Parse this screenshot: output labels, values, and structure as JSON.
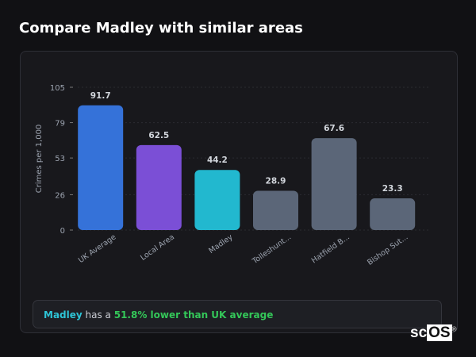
{
  "title": "Compare Madley with similar areas",
  "chart_data": {
    "type": "bar",
    "categories": [
      "UK Average",
      "Local Area",
      "Madley",
      "Tolleshunt...",
      "Hatfield B...",
      "Bishop Sut..."
    ],
    "values": [
      91.7,
      62.5,
      44.2,
      28.9,
      67.6,
      23.3
    ],
    "value_labels": [
      "91.7",
      "62.5",
      "44.2",
      "28.9",
      "67.6",
      "23.3"
    ],
    "colors": [
      "#3572d9",
      "#7b4fd6",
      "#22b8cf",
      "#5b6678",
      "#5b6678",
      "#5b6678"
    ],
    "ylabel": "Crimes per 1,000",
    "xlabel": "",
    "yticks": [
      0,
      26,
      53,
      79,
      105
    ],
    "ylim": [
      0,
      105
    ],
    "grid": true
  },
  "summary": {
    "place": "Madley",
    "middle": " has a ",
    "stat": "51.8% lower than UK average"
  },
  "logo": {
    "text_a": "sc",
    "text_b": "OS",
    "mark": "®"
  }
}
